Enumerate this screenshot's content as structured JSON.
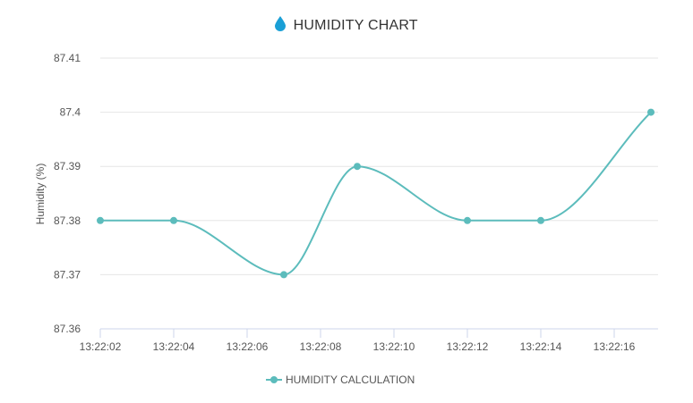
{
  "header": {
    "title": "HUMIDITY CHART",
    "icon": "water-drop-icon",
    "icon_color": "#1a9fd6"
  },
  "chart_data": {
    "type": "line",
    "title": "HUMIDITY CHART",
    "xlabel": "",
    "ylabel": "Humidity (%)",
    "ylim": [
      87.36,
      87.41
    ],
    "y_ticks": [
      "87.36",
      "87.37",
      "87.38",
      "87.39",
      "87.4",
      "87.41"
    ],
    "x_ticks": [
      "13:22:02",
      "13:22:04",
      "13:22:06",
      "13:22:08",
      "13:22:10",
      "13:22:12",
      "13:22:14",
      "13:22:16"
    ],
    "curve": "smooth",
    "grid": true,
    "legend_position": "bottom",
    "series": [
      {
        "name": "HUMIDITY CALCULATION",
        "color": "#5cbcbc",
        "x": [
          "13:22:02",
          "13:22:04",
          "13:22:07",
          "13:22:09",
          "13:22:12",
          "13:22:14",
          "13:22:17"
        ],
        "values": [
          87.38,
          87.38,
          87.37,
          87.39,
          87.38,
          87.38,
          87.4
        ]
      }
    ]
  }
}
